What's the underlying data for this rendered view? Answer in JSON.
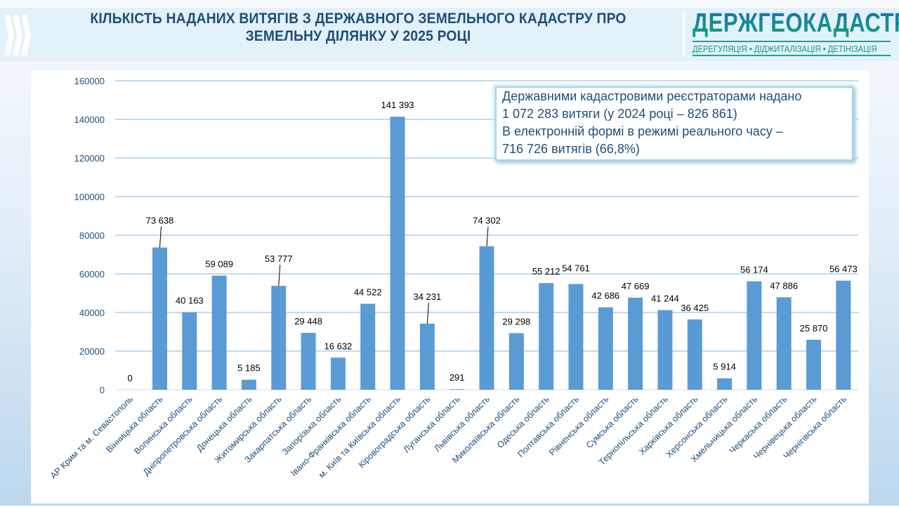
{
  "header": {
    "title_line1": "КІЛЬКІСТЬ НАДАНИХ ВИТЯГІВ З ДЕРЖАВНОГО ЗЕМЕЛЬНОГО КАДАСТРУ ПРО",
    "title_line2": "ЗЕМЕЛЬНУ ДІЛЯНКУ У 2025 РОЦІ",
    "logo_name": "ДЕРЖГЕОКАДАСТР",
    "logo_tagline": "ДЕРЕГУЛЯЦІЯ • ДІДЖИТАЛІЗАЦІЯ • ДЕТІНІЗАЦІЯ"
  },
  "callout": {
    "line1": "Державними кадастровими реєстраторами надано",
    "line2": "1 072 283 витяги (у 2024 році – 826 861)",
    "line3": "В електронній формі в режимі реального часу –",
    "line4": "716 726 витягів (66,8%)"
  },
  "chart_data": {
    "type": "bar",
    "categories": [
      "АР Крим та м. Севастополь",
      "Вінницька область",
      "Волинська область",
      "Дніпропетровська область",
      "Донецька область",
      "Житомирська область",
      "Закарпатська область",
      "Запорізька область",
      "Івано-Франківська область",
      "м. Київ та Київська область",
      "Кіровоградська область",
      "Луганська область",
      "Львівська область",
      "Миколаївська область",
      "Одеська область",
      "Полтавська область",
      "Рівненська область",
      "Сумська область",
      "Тернопільська область",
      "Харківська область",
      "Херсонська область",
      "Хмельницька область",
      "Черкаська область",
      "Чернівецька область",
      "Чернігівська область"
    ],
    "values": [
      0,
      73638,
      40163,
      59089,
      5185,
      53777,
      29448,
      16632,
      44522,
      141393,
      34231,
      291,
      74302,
      29298,
      55212,
      54761,
      42686,
      47669,
      41244,
      36425,
      5914,
      56174,
      47886,
      25870,
      56473
    ],
    "data_labels": [
      "0",
      "73 638",
      "40 163",
      "59 089",
      "5 185",
      "53 777",
      "29 448",
      "16 632",
      "44 522",
      "141 393",
      "34 231",
      "291",
      "74 302",
      "29 298",
      "55 212",
      "54 761",
      "42 686",
      "47 669",
      "41 244",
      "36 425",
      "5 914",
      "56 174",
      "47 886",
      "25 870",
      "56 473"
    ],
    "yticks": [
      "0",
      "20000",
      "40000",
      "60000",
      "80000",
      "100000",
      "120000",
      "140000",
      "160000"
    ],
    "ylim": [
      0,
      160000
    ],
    "grid": true,
    "bar_color": "#5b9bd5"
  }
}
